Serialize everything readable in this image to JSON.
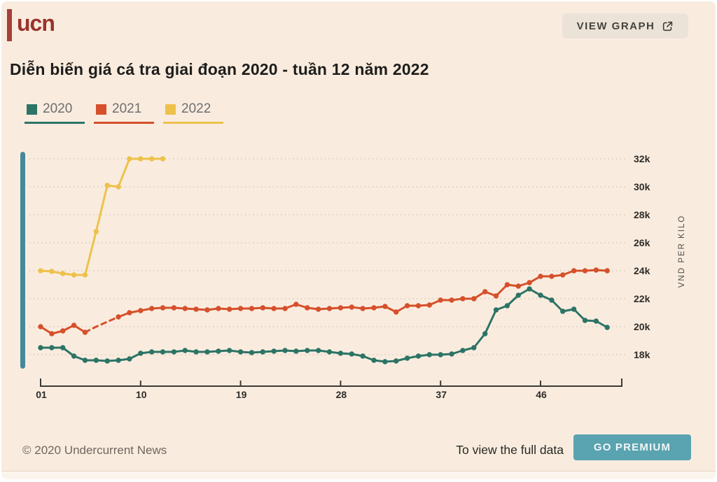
{
  "header": {
    "logo_text": "ucn",
    "view_graph_label": "VIEW GRAPH"
  },
  "title": "Diễn biến giá cá tra giai đoạn 2020 - tuần 12 năm 2022",
  "legend": [
    {
      "label": "2020",
      "color": "#2c7465"
    },
    {
      "label": "2021",
      "color": "#d6502b"
    },
    {
      "label": "2022",
      "color": "#eec14b"
    }
  ],
  "footer": {
    "copyright": "© 2020 Undercurrent News",
    "cta_text": "To view the full data",
    "cta_button_label": "GO PREMIUM"
  },
  "colors": {
    "background": "#f9ecdf",
    "logo_red": "#9c312b",
    "scrollbar": "#44899a",
    "go_premium": "#5aa3b0",
    "axis": "#3c3a37",
    "gridline": "#dbcfc2"
  },
  "chart_data": {
    "type": "line",
    "title": "Diễn biến giá cá tra giai đoạn 2020 - tuần 12 năm 2022",
    "xlabel": "",
    "ylabel": "VND PER KILO",
    "x_unit": "week of year",
    "value_unit": "thousand VND per kilo",
    "grid": "dotted horizontal lines",
    "legend_position": "top-left",
    "ylim": [
      17.2,
      32.7
    ],
    "x_range_weeks": [
      1,
      53
    ],
    "xticks": [
      {
        "week": 1,
        "label": "01"
      },
      {
        "week": 10,
        "label": "10"
      },
      {
        "week": 19,
        "label": "19"
      },
      {
        "week": 28,
        "label": "28"
      },
      {
        "week": 37,
        "label": "37"
      },
      {
        "week": 46,
        "label": "46"
      }
    ],
    "yticks": [
      {
        "value": 18,
        "label": "18k"
      },
      {
        "value": 20,
        "label": "20k"
      },
      {
        "value": 22,
        "label": "22k"
      },
      {
        "value": 24,
        "label": "24k"
      },
      {
        "value": 26,
        "label": "26k"
      },
      {
        "value": 28,
        "label": "28k"
      },
      {
        "value": 30,
        "label": "30k"
      },
      {
        "value": 32,
        "label": "32k"
      }
    ],
    "series": [
      {
        "name": "2020",
        "color": "#2c7465",
        "start_week": 1,
        "values": [
          18.5,
          18.5,
          18.5,
          17.9,
          17.6,
          17.6,
          17.55,
          17.6,
          17.7,
          18.1,
          18.2,
          18.2,
          18.2,
          18.3,
          18.2,
          18.2,
          18.25,
          18.3,
          18.2,
          18.15,
          18.2,
          18.25,
          18.3,
          18.25,
          18.3,
          18.3,
          18.2,
          18.1,
          18.05,
          17.9,
          17.6,
          17.5,
          17.55,
          17.75,
          17.9,
          18.0,
          18.0,
          18.05,
          18.3,
          18.5,
          19.5,
          21.2,
          21.5,
          22.25,
          22.7,
          22.25,
          21.9,
          21.1,
          21.25,
          20.45,
          20.4,
          19.95
        ]
      },
      {
        "name": "2021",
        "color": "#d6502b",
        "start_week": 1,
        "dashed_segment_indices": [
          4,
          7
        ],
        "hidden_marker_indices": [
          5,
          6
        ],
        "values": [
          20.0,
          19.5,
          19.7,
          20.1,
          19.6,
          20.0,
          20.35,
          20.7,
          21.0,
          21.15,
          21.3,
          21.35,
          21.35,
          21.3,
          21.25,
          21.2,
          21.3,
          21.25,
          21.3,
          21.3,
          21.35,
          21.3,
          21.3,
          21.6,
          21.35,
          21.25,
          21.3,
          21.35,
          21.4,
          21.3,
          21.35,
          21.45,
          21.05,
          21.5,
          21.5,
          21.55,
          21.9,
          21.9,
          22.0,
          22.0,
          22.5,
          22.2,
          23.0,
          22.9,
          23.15,
          23.6,
          23.6,
          23.7,
          24.0,
          24.0,
          24.05,
          24.0
        ]
      },
      {
        "name": "2022",
        "color": "#eec14b",
        "start_week": 1,
        "values": [
          24.0,
          23.95,
          23.8,
          23.7,
          23.7,
          26.8,
          30.1,
          30.0,
          32.0,
          32.0,
          32.0,
          32.0
        ]
      }
    ]
  }
}
